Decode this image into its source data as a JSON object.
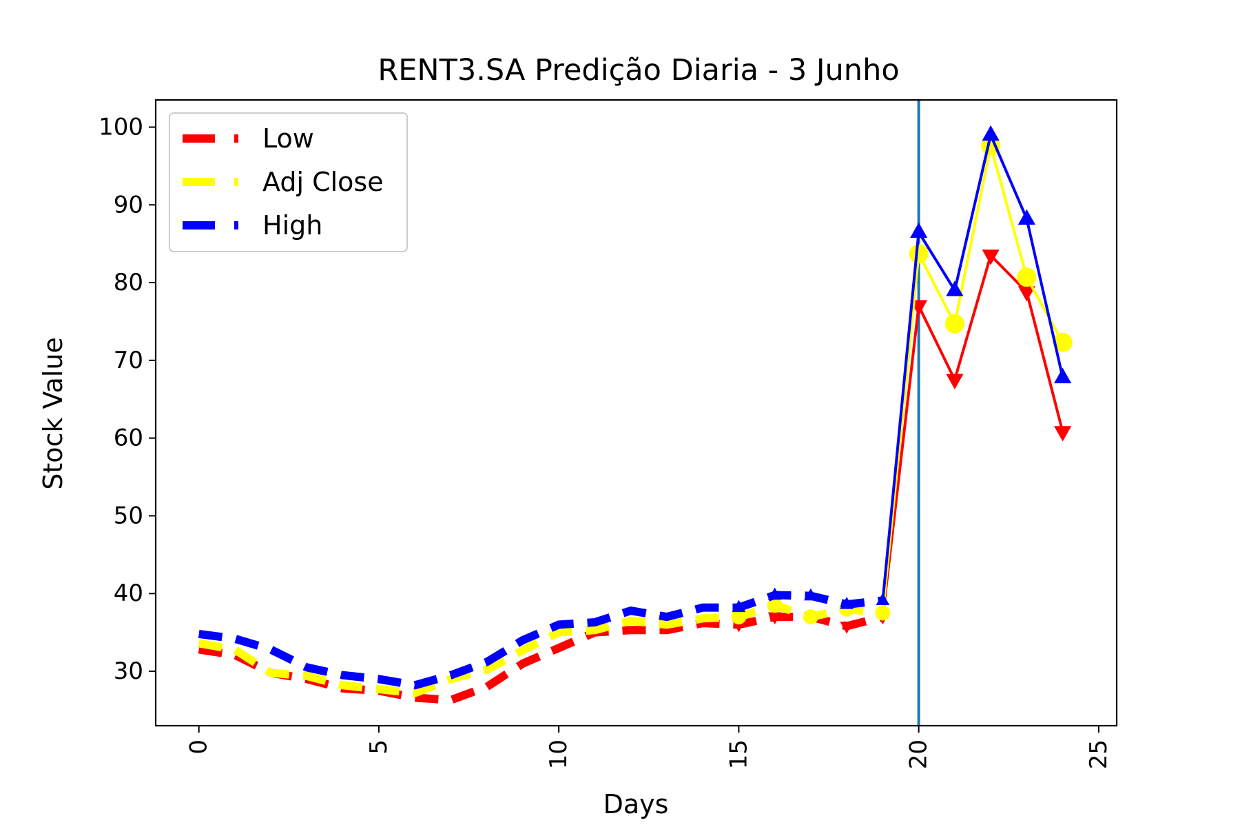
{
  "chart_data": {
    "type": "line",
    "title": "RENT3.SA Predição Diaria - 3 Junho",
    "xlabel": "Days",
    "ylabel": "Stock Value",
    "xlim": [
      -1.2,
      25.5
    ],
    "ylim": [
      23,
      103.5
    ],
    "xticks": [
      0,
      5,
      10,
      15,
      20,
      25
    ],
    "yticks": [
      30,
      40,
      50,
      60,
      70,
      80,
      90,
      100
    ],
    "legend_position": "top-left",
    "grid": false,
    "vline_x": 20,
    "vline_color": "#1f77b4",
    "series": [
      {
        "name": "Low",
        "color": "#ff0000",
        "marker": "triangle-down",
        "history_x": [
          0,
          1,
          2,
          3,
          4,
          5,
          6,
          7,
          8,
          9,
          10,
          11,
          12,
          13,
          14,
          15,
          16,
          17,
          18,
          19
        ],
        "history_y": [
          32.8,
          32.1,
          29.8,
          29.0,
          27.8,
          27.5,
          26.6,
          26.3,
          28.0,
          31.0,
          33.0,
          35.0,
          35.3,
          35.3,
          36.2,
          36.0,
          37.0,
          37.0,
          35.8,
          37.0
        ],
        "prediction_x": [
          19,
          20,
          21,
          22,
          23,
          24
        ],
        "prediction_y": [
          37.0,
          77.0,
          67.5,
          83.5,
          78.8,
          60.8
        ]
      },
      {
        "name": "Adj Close",
        "color": "#ffff00",
        "marker": "circle",
        "history_x": [
          0,
          1,
          2,
          3,
          4,
          5,
          6,
          7,
          8,
          9,
          10,
          11,
          12,
          13,
          14,
          15,
          16,
          17,
          18,
          19
        ],
        "history_y": [
          33.6,
          32.8,
          29.8,
          29.4,
          28.2,
          27.7,
          27.2,
          29.0,
          30.2,
          32.7,
          35.0,
          35.3,
          36.5,
          36.0,
          36.8,
          37.0,
          38.5,
          37.0,
          38.0,
          37.5
        ],
        "prediction_x": [
          19,
          20,
          21,
          22,
          23,
          24
        ],
        "prediction_y": [
          37.5,
          83.7,
          74.7,
          97.6,
          80.7,
          72.3
        ]
      },
      {
        "name": "High",
        "color": "#0000ff",
        "marker": "triangle-up",
        "history_x": [
          0,
          1,
          2,
          3,
          4,
          5,
          6,
          7,
          8,
          9,
          10,
          11,
          12,
          13,
          14,
          15,
          16,
          17,
          18,
          19
        ],
        "history_y": [
          34.8,
          34.2,
          32.8,
          30.5,
          29.5,
          29.0,
          28.2,
          29.5,
          31.2,
          34.0,
          36.0,
          36.3,
          37.8,
          37.0,
          38.2,
          38.2,
          39.8,
          39.7,
          38.6,
          39.1
        ],
        "prediction_x": [
          19,
          20,
          21,
          22,
          23,
          24
        ],
        "prediction_y": [
          39.1,
          86.5,
          79.0,
          99.0,
          88.2,
          67.8
        ]
      }
    ]
  }
}
